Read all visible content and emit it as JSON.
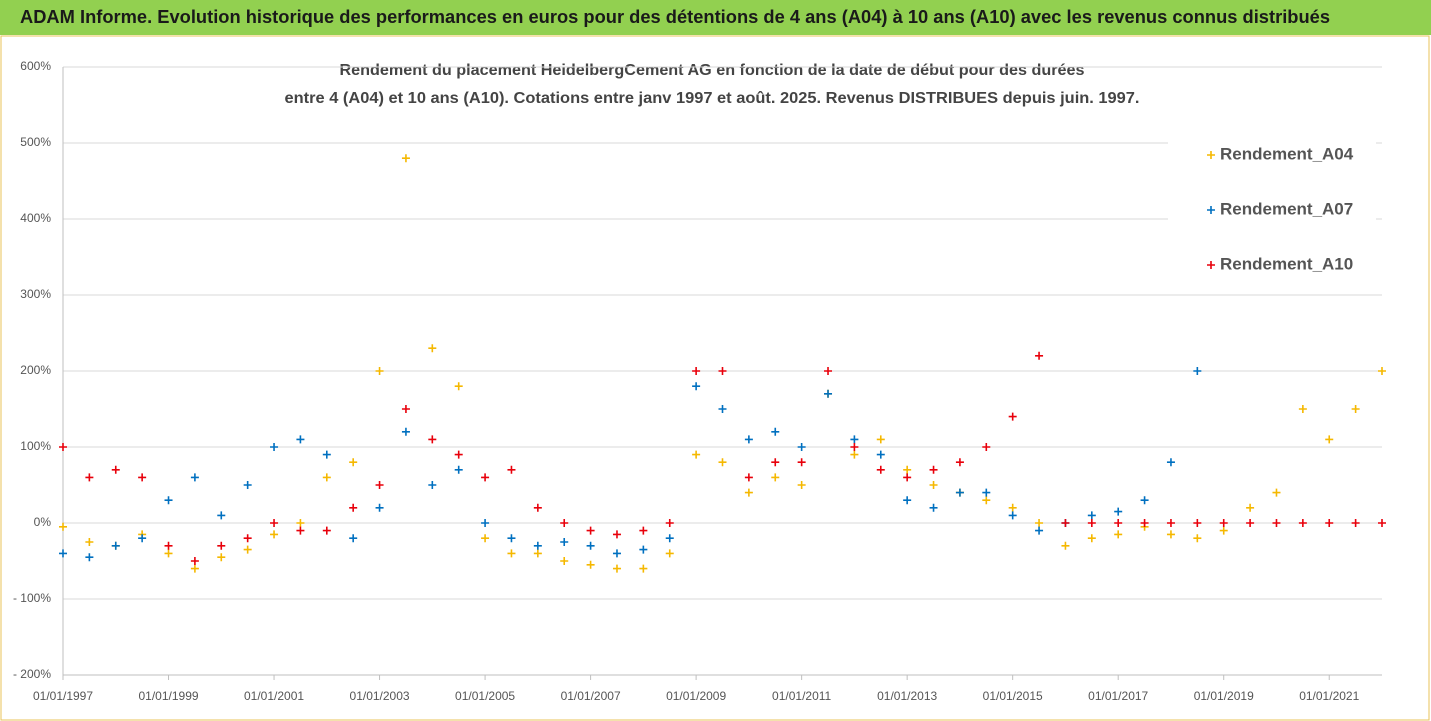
{
  "chart_data": {
    "type": "scatter",
    "title": "ADAM Informe. Evolution historique des performances en euros pour des détentions de 4 ans (A04) à 10 ans (A10) avec les revenus connus distribués",
    "subtitle": [
      "Rendement du placement HeidelbergCement AG en fonction de la date de début pour des durées",
      "entre 4 (A04) et 10 ans (A10). Cotations entre janv 1997 et août. 2025. Revenus DISTRIBUES depuis juin. 1997."
    ],
    "x": [
      "01/01/1997",
      "01/07/1997",
      "01/01/1998",
      "01/07/1998",
      "01/01/1999",
      "01/07/1999",
      "01/01/2000",
      "01/07/2000",
      "01/01/2001",
      "01/07/2001",
      "01/01/2002",
      "01/07/2002",
      "01/01/2003",
      "01/07/2003",
      "01/01/2004",
      "01/07/2004",
      "01/01/2005",
      "01/07/2005",
      "01/01/2006",
      "01/07/2006",
      "01/01/2007",
      "01/07/2007",
      "01/01/2008",
      "01/07/2008",
      "01/01/2009",
      "01/07/2009",
      "01/01/2010",
      "01/07/2010",
      "01/01/2011",
      "01/07/2011",
      "01/01/2012",
      "01/07/2012",
      "01/01/2013",
      "01/07/2013",
      "01/01/2014",
      "01/07/2014",
      "01/01/2015",
      "01/07/2015",
      "01/01/2016",
      "01/07/2016",
      "01/01/2017",
      "01/07/2017",
      "01/01/2018",
      "01/07/2018",
      "01/01/2019",
      "01/07/2019",
      "01/01/2020",
      "01/07/2020",
      "01/01/2021",
      "01/07/2021",
      "01/01/2022"
    ],
    "series": [
      {
        "name": "Rendement_A04",
        "color": "#f5b800",
        "values": [
          -5,
          -25,
          -30,
          -15,
          -40,
          -60,
          -45,
          -35,
          -15,
          0,
          60,
          80,
          200,
          480,
          230,
          180,
          -20,
          -40,
          -40,
          -50,
          -55,
          -60,
          -60,
          -40,
          90,
          80,
          40,
          60,
          50,
          170,
          90,
          110,
          70,
          50,
          40,
          30,
          20,
          0,
          -30,
          -20,
          -15,
          -5,
          -15,
          -20,
          -10,
          20,
          40,
          150,
          110,
          150,
          200
        ]
      },
      {
        "name": "Rendement_A07",
        "color": "#0070c0",
        "values": [
          -40,
          -45,
          -30,
          -20,
          30,
          60,
          10,
          50,
          100,
          110,
          90,
          -20,
          20,
          120,
          50,
          70,
          0,
          -20,
          -30,
          -25,
          -30,
          -40,
          -35,
          -20,
          180,
          150,
          110,
          120,
          100,
          170,
          110,
          90,
          30,
          20,
          40,
          40,
          10,
          -10,
          0,
          10,
          15,
          30,
          80,
          200,
          null,
          null,
          null,
          null,
          null,
          null,
          null
        ]
      },
      {
        "name": "Rendement_A10",
        "color": "#e8000b",
        "values": [
          100,
          60,
          70,
          60,
          -30,
          -50,
          -30,
          -20,
          0,
          -10,
          -10,
          20,
          50,
          150,
          110,
          90,
          60,
          70,
          20,
          0,
          -10,
          -15,
          -10,
          0,
          200,
          200,
          60,
          80,
          80,
          200,
          100,
          70,
          60,
          70,
          80,
          100,
          140,
          220,
          0,
          0,
          0,
          0,
          0,
          0,
          0,
          0,
          0,
          0,
          0,
          0,
          0
        ]
      }
    ],
    "xlim": [
      "01/01/1997",
      "01/01/2022"
    ],
    "xticks": [
      "01/01/1997",
      "01/01/1999",
      "01/01/2001",
      "01/01/2003",
      "01/01/2005",
      "01/01/2007",
      "01/01/2009",
      "01/01/2011",
      "01/01/2013",
      "01/01/2015",
      "01/01/2017",
      "01/01/2019",
      "01/01/2021"
    ],
    "ylim": [
      -200,
      600
    ],
    "yticks": [
      {
        "value": -200,
        "label": "- 200%"
      },
      {
        "value": -100,
        "label": "- 100%"
      },
      {
        "value": 0,
        "label": "0%"
      },
      {
        "value": 100,
        "label": "100%"
      },
      {
        "value": 200,
        "label": "200%"
      },
      {
        "value": 300,
        "label": "300%"
      },
      {
        "value": 400,
        "label": "400%"
      },
      {
        "value": 500,
        "label": "500%"
      },
      {
        "value": 600,
        "label": "600%"
      }
    ],
    "grid": true,
    "legend": "upper right"
  }
}
